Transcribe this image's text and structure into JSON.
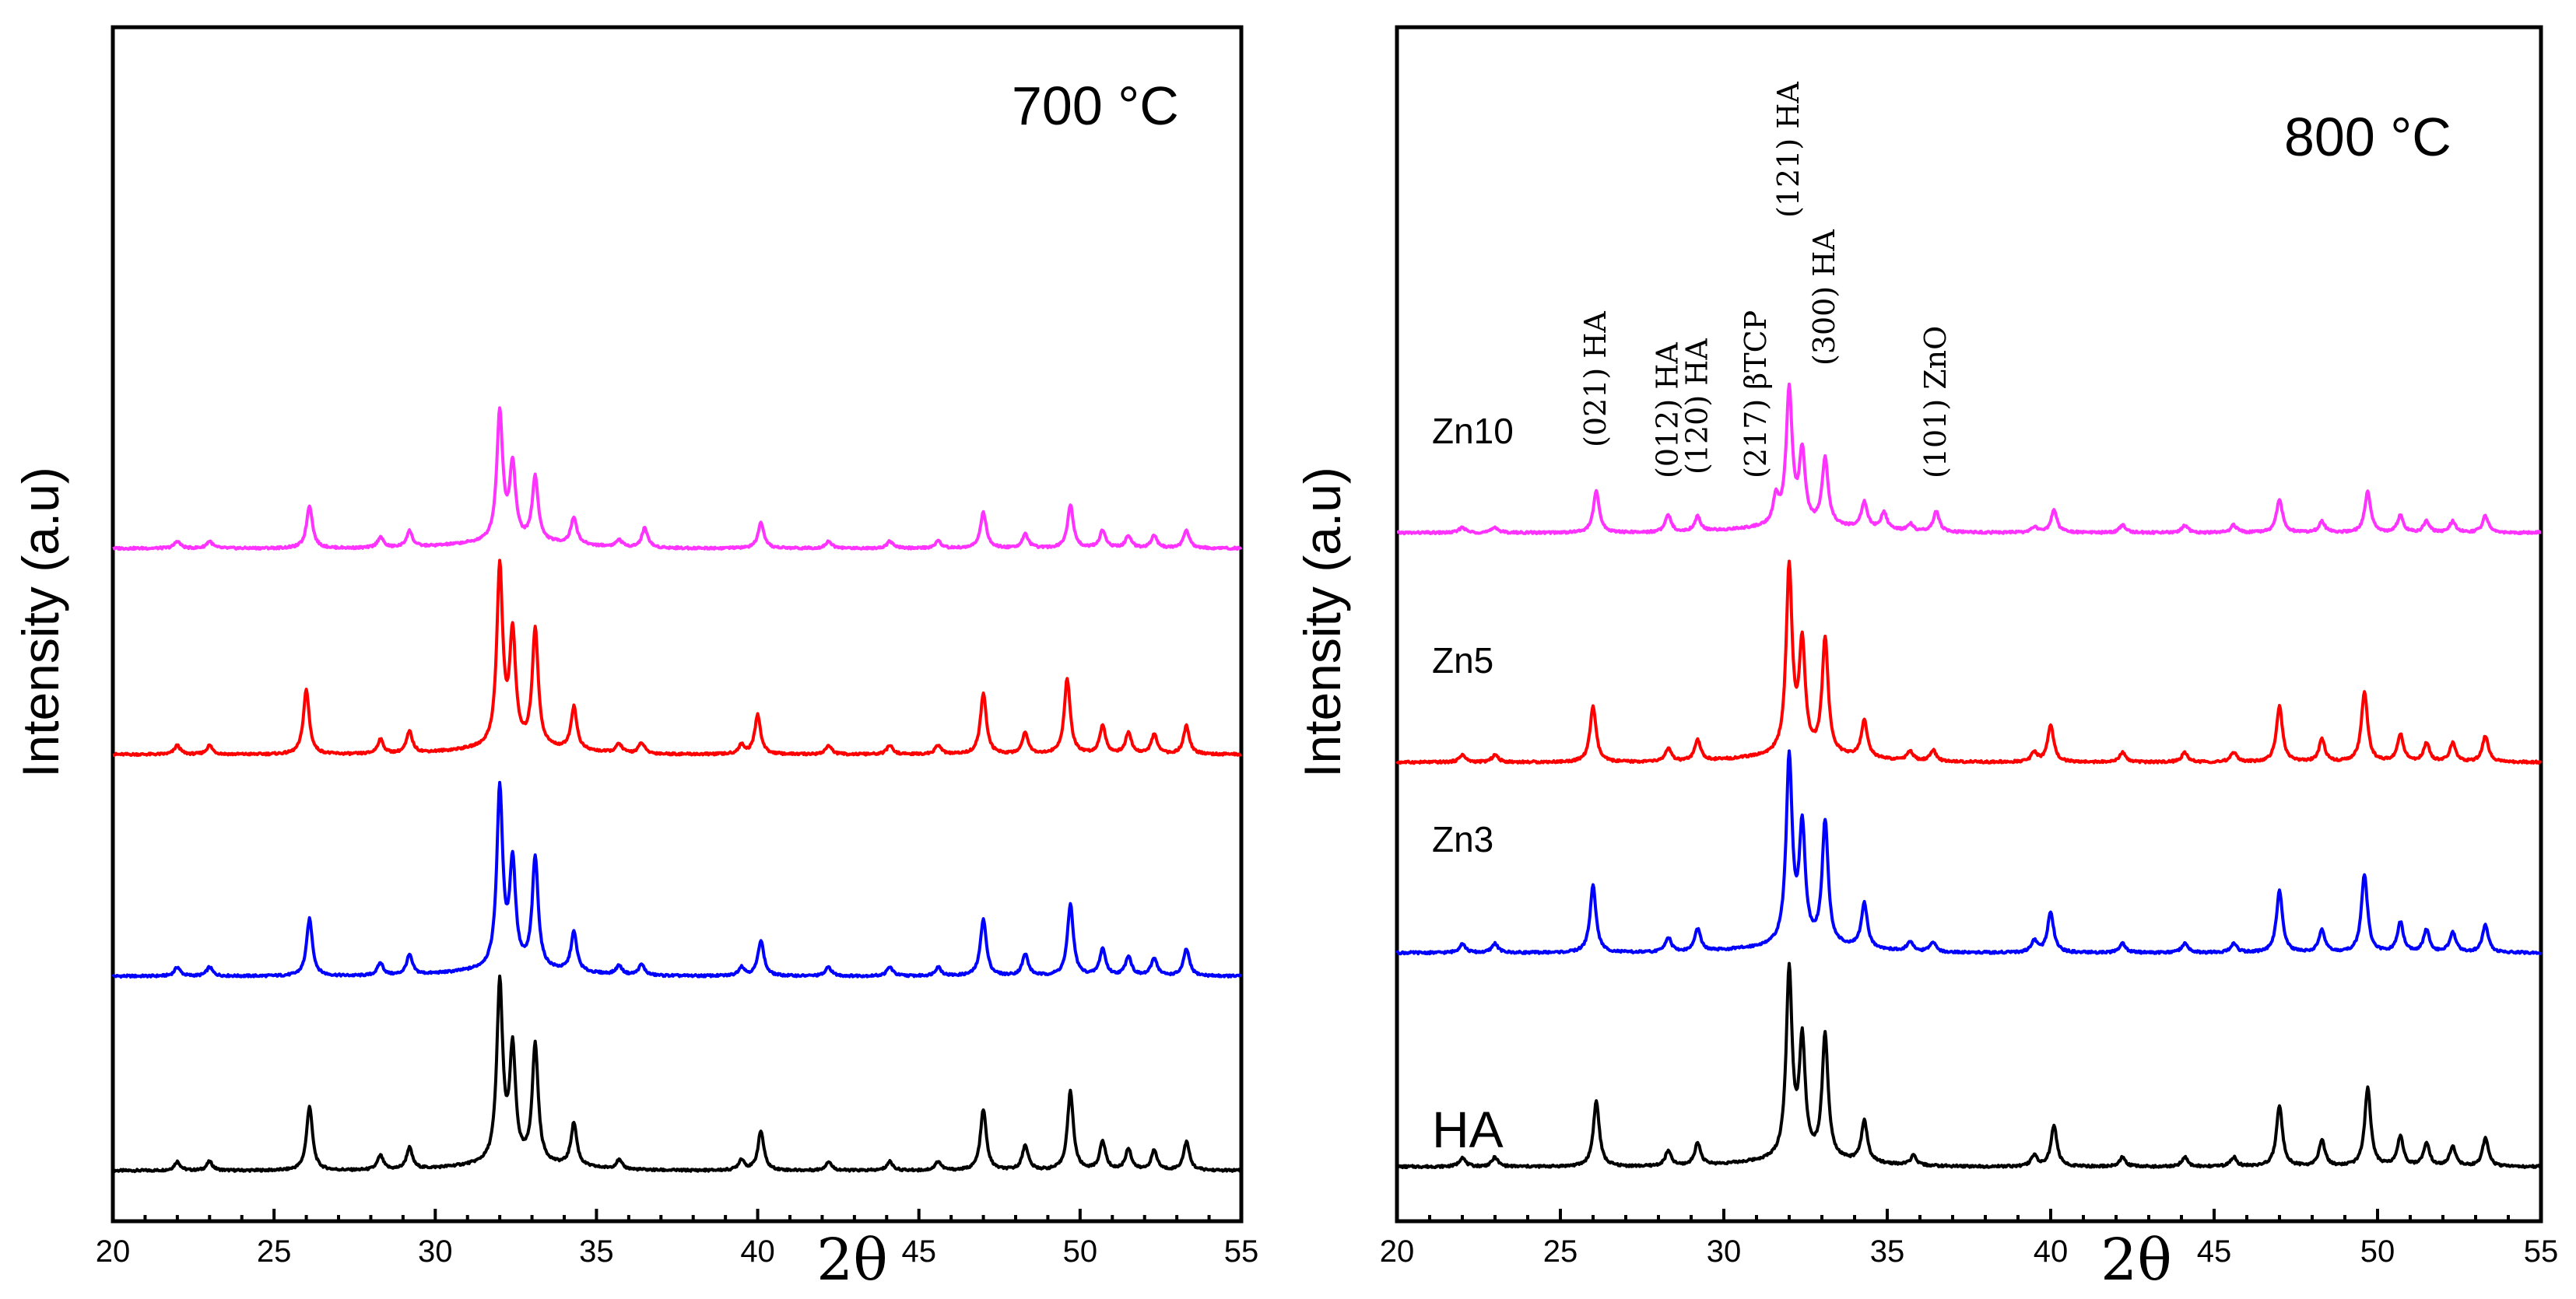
{
  "chart_data": [
    {
      "type": "line",
      "title": "700 °C",
      "xlabel": "2θ",
      "ylabel": "Intensity (a.u)",
      "xlim": [
        20,
        55
      ],
      "xticks": [
        20,
        25,
        30,
        35,
        40,
        45,
        50,
        55
      ],
      "y_ticks_labeled": false,
      "grid": false,
      "series_labels_shown": false,
      "series": [
        {
          "color": "#000000",
          "offset": 0.0,
          "peaks": [
            [
              22.0,
              0.05
            ],
            [
              23.0,
              0.05
            ],
            [
              26.1,
              0.36
            ],
            [
              28.3,
              0.08
            ],
            [
              29.2,
              0.12
            ],
            [
              32.0,
              1.0
            ],
            [
              32.4,
              0.62
            ],
            [
              33.1,
              0.66
            ],
            [
              34.3,
              0.24
            ],
            [
              35.7,
              0.05
            ],
            [
              39.5,
              0.06
            ],
            [
              40.1,
              0.22
            ],
            [
              42.2,
              0.05
            ],
            [
              44.1,
              0.05
            ],
            [
              45.6,
              0.05
            ],
            [
              47.0,
              0.34
            ],
            [
              48.3,
              0.14
            ],
            [
              49.7,
              0.44
            ],
            [
              50.7,
              0.16
            ],
            [
              51.5,
              0.12
            ],
            [
              52.3,
              0.11
            ],
            [
              53.3,
              0.16
            ]
          ]
        },
        {
          "color": "#0000ff",
          "offset": 1.0,
          "peaks": [
            [
              22.0,
              0.05
            ],
            [
              23.0,
              0.05
            ],
            [
              26.1,
              0.32
            ],
            [
              28.3,
              0.07
            ],
            [
              29.2,
              0.11
            ],
            [
              32.0,
              1.0
            ],
            [
              32.4,
              0.58
            ],
            [
              33.1,
              0.62
            ],
            [
              34.3,
              0.22
            ],
            [
              35.7,
              0.05
            ],
            [
              36.4,
              0.06
            ],
            [
              39.5,
              0.05
            ],
            [
              40.1,
              0.2
            ],
            [
              42.2,
              0.05
            ],
            [
              44.1,
              0.05
            ],
            [
              45.6,
              0.05
            ],
            [
              47.0,
              0.32
            ],
            [
              48.3,
              0.12
            ],
            [
              49.7,
              0.4
            ],
            [
              50.7,
              0.15
            ],
            [
              51.5,
              0.11
            ],
            [
              52.3,
              0.1
            ],
            [
              53.3,
              0.15
            ]
          ]
        },
        {
          "color": "#ff0000",
          "offset": 2.0,
          "peaks": [
            [
              22.0,
              0.05
            ],
            [
              23.0,
              0.05
            ],
            [
              26.0,
              0.36
            ],
            [
              28.3,
              0.08
            ],
            [
              29.2,
              0.12
            ],
            [
              32.0,
              1.0
            ],
            [
              32.4,
              0.62
            ],
            [
              33.1,
              0.66
            ],
            [
              34.3,
              0.24
            ],
            [
              35.7,
              0.05
            ],
            [
              36.4,
              0.06
            ],
            [
              39.5,
              0.05
            ],
            [
              40.0,
              0.22
            ],
            [
              42.2,
              0.05
            ],
            [
              44.1,
              0.05
            ],
            [
              45.6,
              0.05
            ],
            [
              47.0,
              0.34
            ],
            [
              48.3,
              0.12
            ],
            [
              49.6,
              0.42
            ],
            [
              50.7,
              0.16
            ],
            [
              51.5,
              0.12
            ],
            [
              52.3,
              0.11
            ],
            [
              53.3,
              0.16
            ]
          ]
        },
        {
          "color": "#ff33ff",
          "offset": 3.0,
          "peaks": [
            [
              22.0,
              0.04
            ],
            [
              23.0,
              0.04
            ],
            [
              26.1,
              0.24
            ],
            [
              28.3,
              0.06
            ],
            [
              29.2,
              0.09
            ],
            [
              32.0,
              0.72
            ],
            [
              32.4,
              0.42
            ],
            [
              33.1,
              0.36
            ],
            [
              34.3,
              0.15
            ],
            [
              35.7,
              0.04
            ],
            [
              36.5,
              0.11
            ],
            [
              40.1,
              0.14
            ],
            [
              42.2,
              0.04
            ],
            [
              44.1,
              0.04
            ],
            [
              45.6,
              0.04
            ],
            [
              47.0,
              0.2
            ],
            [
              48.3,
              0.08
            ],
            [
              49.7,
              0.24
            ],
            [
              50.7,
              0.1
            ],
            [
              51.5,
              0.07
            ],
            [
              52.3,
              0.07
            ],
            [
              53.3,
              0.1
            ]
          ]
        }
      ]
    },
    {
      "type": "line",
      "title": "800 °C",
      "xlabel": "2θ",
      "ylabel": "Intensity (a.u)",
      "xlim": [
        20,
        55
      ],
      "xticks": [
        20,
        25,
        30,
        35,
        40,
        45,
        50,
        55
      ],
      "y_ticks_labeled": false,
      "grid": false,
      "series": [
        {
          "name": "HA",
          "color": "#000000",
          "offset": 0.0,
          "peaks": [
            [
              22.0,
              0.05
            ],
            [
              23.0,
              0.05
            ],
            [
              26.1,
              0.35
            ],
            [
              28.3,
              0.08
            ],
            [
              29.2,
              0.12
            ],
            [
              32.0,
              1.0
            ],
            [
              32.4,
              0.62
            ],
            [
              33.1,
              0.66
            ],
            [
              34.3,
              0.22
            ],
            [
              35.8,
              0.05
            ],
            [
              39.5,
              0.06
            ],
            [
              40.1,
              0.22
            ],
            [
              42.2,
              0.05
            ],
            [
              44.1,
              0.05
            ],
            [
              45.6,
              0.05
            ],
            [
              47.0,
              0.33
            ],
            [
              48.3,
              0.14
            ],
            [
              49.7,
              0.42
            ],
            [
              50.7,
              0.16
            ],
            [
              51.5,
              0.12
            ],
            [
              52.3,
              0.11
            ],
            [
              53.3,
              0.15
            ]
          ]
        },
        {
          "name": "Zn3",
          "color": "#0000ff",
          "offset": 1.0,
          "peaks": [
            [
              22.0,
              0.05
            ],
            [
              23.0,
              0.05
            ],
            [
              26.0,
              0.36
            ],
            [
              28.3,
              0.08
            ],
            [
              29.2,
              0.12
            ],
            [
              32.0,
              1.0
            ],
            [
              32.4,
              0.62
            ],
            [
              33.1,
              0.66
            ],
            [
              34.3,
              0.24
            ],
            [
              35.7,
              0.05
            ],
            [
              36.4,
              0.05
            ],
            [
              39.5,
              0.06
            ],
            [
              40.0,
              0.22
            ],
            [
              42.2,
              0.05
            ],
            [
              44.1,
              0.05
            ],
            [
              45.6,
              0.05
            ],
            [
              47.0,
              0.33
            ],
            [
              48.3,
              0.12
            ],
            [
              49.6,
              0.42
            ],
            [
              50.7,
              0.16
            ],
            [
              51.5,
              0.12
            ],
            [
              52.3,
              0.11
            ],
            [
              53.3,
              0.15
            ]
          ]
        },
        {
          "name": "Zn5",
          "color": "#ff0000",
          "offset": 2.0,
          "peaks": [
            [
              22.0,
              0.04
            ],
            [
              23.0,
              0.04
            ],
            [
              26.0,
              0.3
            ],
            [
              28.3,
              0.07
            ],
            [
              29.2,
              0.11
            ],
            [
              32.0,
              1.0
            ],
            [
              32.4,
              0.58
            ],
            [
              33.1,
              0.62
            ],
            [
              34.3,
              0.2
            ],
            [
              35.7,
              0.05
            ],
            [
              36.4,
              0.06
            ],
            [
              39.5,
              0.05
            ],
            [
              40.0,
              0.2
            ],
            [
              42.2,
              0.05
            ],
            [
              44.1,
              0.05
            ],
            [
              45.6,
              0.05
            ],
            [
              47.0,
              0.3
            ],
            [
              48.3,
              0.12
            ],
            [
              49.6,
              0.38
            ],
            [
              50.7,
              0.15
            ],
            [
              51.5,
              0.1
            ],
            [
              52.3,
              0.1
            ],
            [
              53.3,
              0.14
            ]
          ]
        },
        {
          "name": "Zn10",
          "color": "#ff33ff",
          "offset": 3.0,
          "peaks": [
            [
              22.0,
              0.03
            ],
            [
              23.0,
              0.03
            ],
            [
              26.1,
              0.22
            ],
            [
              28.3,
              0.09
            ],
            [
              29.2,
              0.08
            ],
            [
              31.6,
              0.14
            ],
            [
              32.0,
              0.72
            ],
            [
              32.4,
              0.38
            ],
            [
              33.1,
              0.36
            ],
            [
              34.3,
              0.14
            ],
            [
              34.9,
              0.09
            ],
            [
              35.7,
              0.04
            ],
            [
              36.5,
              0.11
            ],
            [
              39.5,
              0.03
            ],
            [
              40.1,
              0.12
            ],
            [
              42.2,
              0.04
            ],
            [
              44.1,
              0.04
            ],
            [
              45.6,
              0.04
            ],
            [
              47.0,
              0.18
            ],
            [
              48.3,
              0.06
            ],
            [
              49.7,
              0.22
            ],
            [
              50.7,
              0.09
            ],
            [
              51.5,
              0.06
            ],
            [
              52.3,
              0.06
            ],
            [
              53.3,
              0.09
            ]
          ]
        }
      ],
      "annotations": [
        {
          "text": "(021) HA",
          "x": 26.1
        },
        {
          "text": "(012) HA",
          "x": 28.3
        },
        {
          "text": "(120) HA",
          "x": 29.2
        },
        {
          "text": "(217) βTCP",
          "x": 31.0
        },
        {
          "text": "(121) HA",
          "x": 32.0
        },
        {
          "text": "(300) HA",
          "x": 33.1
        },
        {
          "text": "(101) ZnO",
          "x": 36.5
        }
      ]
    }
  ]
}
